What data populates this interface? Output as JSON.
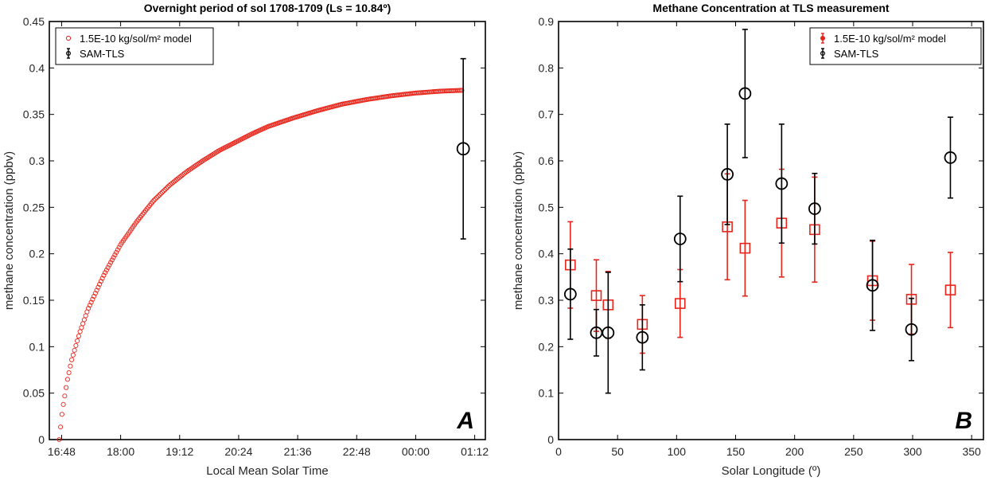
{
  "chart_data": [
    {
      "id": "A",
      "type": "scatter",
      "panel_letter": "A",
      "title": "Overnight period of sol 1708-1709 (Ls = 10.84º)",
      "xlabel": "Local Mean Solar Time",
      "ylabel": "methane concentration (ppbv)",
      "xlim": [
        "16:33",
        "01:25"
      ],
      "ylim": [
        0,
        0.45
      ],
      "xticks": [
        "16:48",
        "18:00",
        "19:12",
        "20:24",
        "21:36",
        "22:48",
        "00:00",
        "01:12"
      ],
      "yticks": [
        "0",
        "0.05",
        "0.1",
        "0.15",
        "0.2",
        "0.25",
        "0.3",
        "0.35",
        "0.4",
        "0.45"
      ],
      "legend_location": "top-left",
      "grid": false,
      "series": [
        {
          "name": "1.5E-10 kg/sol/m² model",
          "marker": "circle-open",
          "color": "#e8251a",
          "model": "saturating curve from 16:45 (0) rising to about 0.376 at 00:58",
          "x": [
            "16:45",
            "16:49",
            "16:55",
            "17:00",
            "17:10",
            "17:20",
            "17:40",
            "18:00",
            "18:20",
            "18:40",
            "19:00",
            "19:20",
            "19:40",
            "20:00",
            "20:20",
            "20:40",
            "21:00",
            "21:30",
            "22:00",
            "22:30",
            "23:00",
            "23:30",
            "00:00",
            "00:30",
            "00:58"
          ],
          "values": [
            0.0,
            0.032,
            0.064,
            0.085,
            0.115,
            0.14,
            0.178,
            0.21,
            0.235,
            0.257,
            0.274,
            0.288,
            0.3,
            0.311,
            0.32,
            0.329,
            0.337,
            0.346,
            0.354,
            0.361,
            0.366,
            0.37,
            0.373,
            0.375,
            0.376
          ]
        },
        {
          "name": "SAM-TLS",
          "marker": "circle-open",
          "color": "#000000",
          "x": [
            "00:58"
          ],
          "values": [
            0.313
          ],
          "err": [
            0.097
          ]
        }
      ]
    },
    {
      "id": "B",
      "type": "scatter",
      "panel_letter": "B",
      "title": "Methane Concentration at TLS measurement",
      "xlabel": "Solar Longitude (º)",
      "ylabel": "methane concentration (ppbv)",
      "xlim": [
        0,
        360
      ],
      "ylim": [
        0,
        0.9
      ],
      "xticks": [
        0,
        50,
        100,
        150,
        200,
        250,
        300,
        350
      ],
      "yticks": [
        "0",
        "0.1",
        "0.2",
        "0.3",
        "0.4",
        "0.5",
        "0.6",
        "0.7",
        "0.8",
        "0.9"
      ],
      "legend_location": "top-right",
      "grid": false,
      "series": [
        {
          "name": "1.5E-10 kg/sol/m² model",
          "marker": "square-open",
          "color": "#e8251a",
          "x": [
            10,
            32,
            42,
            71,
            103,
            143,
            158,
            189,
            217,
            266,
            299,
            332
          ],
          "values": [
            0.376,
            0.31,
            0.29,
            0.248,
            0.293,
            0.458,
            0.412,
            0.466,
            0.452,
            0.342,
            0.302,
            0.322
          ],
          "err": [
            0.093,
            0.077,
            0.072,
            0.062,
            0.073,
            0.114,
            0.103,
            0.116,
            0.113,
            0.085,
            0.075,
            0.081
          ]
        },
        {
          "name": "SAM-TLS",
          "marker": "circle-open",
          "color": "#000000",
          "x": [
            10,
            32,
            42,
            71,
            103,
            143,
            158,
            189,
            217,
            266,
            299,
            332
          ],
          "values": [
            0.313,
            0.23,
            0.23,
            0.22,
            0.432,
            0.571,
            0.745,
            0.551,
            0.497,
            0.332,
            0.237,
            0.607
          ],
          "err": [
            0.097,
            0.05,
            0.13,
            0.07,
            0.092,
            0.108,
            0.138,
            0.128,
            0.076,
            0.097,
            0.067,
            0.087
          ]
        }
      ]
    }
  ]
}
